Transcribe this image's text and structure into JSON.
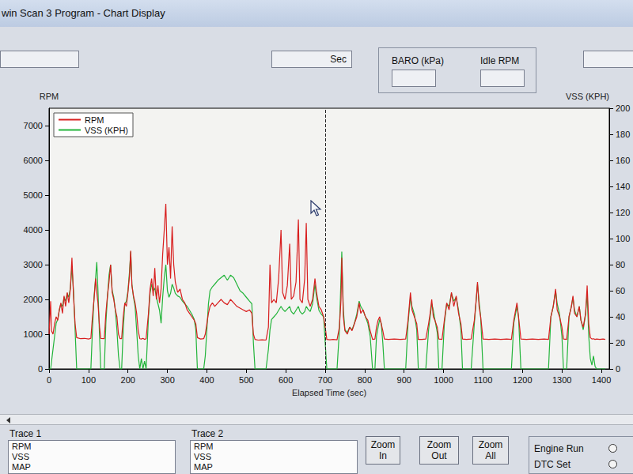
{
  "window": {
    "title": "win Scan 3 Program - Chart Display",
    "fields": {
      "time_unit": "Sec",
      "baro": "BARO (kPa)",
      "idle": "Idle RPM"
    }
  },
  "chart_data": {
    "type": "line",
    "x_label": "Elapsed Time (sec)",
    "y_label": "RPM",
    "y2_label": "VSS (KPH)",
    "legend": "upper left",
    "grid": false,
    "xlim": [
      0,
      1420
    ],
    "xticks": [
      0,
      100,
      200,
      300,
      400,
      500,
      600,
      700,
      800,
      900,
      1000,
      1100,
      1200,
      1300,
      1400
    ],
    "ylim": [
      0,
      7500
    ],
    "yticks": [
      0,
      1000,
      2000,
      3000,
      4000,
      5000,
      6000,
      7000
    ],
    "y2lim": [
      0,
      200
    ],
    "y2ticks": [
      0,
      20,
      40,
      60,
      80,
      100,
      120,
      140,
      160,
      180,
      200
    ],
    "cursor_time": 700,
    "x": [
      0,
      4,
      6,
      10,
      14,
      18,
      22,
      26,
      30,
      34,
      38,
      42,
      46,
      50,
      54,
      58,
      62,
      66,
      70,
      80,
      90,
      100,
      106,
      110,
      114,
      118,
      121,
      124,
      128,
      131,
      140,
      144,
      148,
      152,
      156,
      160,
      164,
      168,
      172,
      176,
      180,
      184,
      188,
      192,
      196,
      200,
      204,
      207,
      210,
      214,
      218,
      222,
      226,
      230,
      234,
      238,
      242,
      246,
      252,
      256,
      260,
      264,
      268,
      272,
      276,
      280,
      284,
      288,
      292,
      296,
      300,
      304,
      308,
      312,
      316,
      320,
      326,
      332,
      338,
      344,
      350,
      356,
      362,
      368,
      372,
      376,
      384,
      392,
      396,
      400,
      404,
      408,
      414,
      420,
      428,
      436,
      444,
      452,
      460,
      468,
      476,
      484,
      492,
      500,
      508,
      514,
      518,
      522,
      530,
      540,
      550,
      556,
      560,
      564,
      570,
      576,
      582,
      588,
      592,
      598,
      604,
      610,
      614,
      620,
      626,
      632,
      636,
      642,
      648,
      652,
      656,
      662,
      668,
      674,
      678,
      684,
      690,
      696,
      700,
      704,
      712,
      720,
      730,
      736,
      740,
      742,
      746,
      750,
      756,
      762,
      768,
      774,
      780,
      786,
      790,
      796,
      802,
      808,
      814,
      820,
      826,
      830,
      834,
      838,
      842,
      846,
      850,
      860,
      875,
      890,
      904,
      910,
      916,
      920,
      926,
      932,
      936,
      945,
      955,
      962,
      966,
      970,
      974,
      978,
      984,
      988,
      996,
      1002,
      1008,
      1014,
      1020,
      1026,
      1032,
      1038,
      1044,
      1048,
      1058,
      1070,
      1078,
      1082,
      1086,
      1090,
      1094,
      1100,
      1115,
      1130,
      1145,
      1160,
      1172,
      1178,
      1186,
      1190,
      1196,
      1210,
      1225,
      1240,
      1255,
      1266,
      1272,
      1278,
      1284,
      1288,
      1294,
      1300,
      1304,
      1312,
      1318,
      1324,
      1328,
      1332,
      1338,
      1344,
      1348,
      1354,
      1360,
      1364,
      1368,
      1372,
      1376,
      1380,
      1384,
      1388,
      1396,
      1404,
      1410
    ],
    "series": [
      {
        "name": "RPM",
        "color": "#d81e1e",
        "values": [
          1000,
          1950,
          1100,
          1000,
          1300,
          1500,
          1400,
          1700,
          1900,
          1600,
          2100,
          1800,
          2200,
          1900,
          2300,
          3200,
          2100,
          1300,
          900,
          870,
          880,
          860,
          880,
          1500,
          2000,
          2600,
          2200,
          1900,
          1200,
          880,
          870,
          1600,
          2100,
          2500,
          3000,
          2200,
          2000,
          1700,
          1500,
          1000,
          870,
          870,
          1500,
          1900,
          1800,
          2200,
          2700,
          3400,
          2400,
          2100,
          1900,
          1600,
          1100,
          870,
          860,
          880,
          850,
          870,
          1600,
          2300,
          2600,
          2100,
          2900,
          2000,
          2400,
          1900,
          2300,
          3300,
          4000,
          4750,
          3000,
          3500,
          2600,
          4100,
          3000,
          2500,
          2200,
          2300,
          2000,
          1900,
          1700,
          1600,
          1500,
          1400,
          1300,
          900,
          860,
          870,
          1000,
          1300,
          1600,
          1800,
          1900,
          1800,
          1900,
          2000,
          1900,
          1850,
          2000,
          1900,
          1800,
          1750,
          1700,
          1650,
          1700,
          1600,
          1000,
          850,
          830,
          840,
          830,
          1200,
          3000,
          1900,
          2000,
          1900,
          2600,
          4000,
          2200,
          2000,
          2400,
          3600,
          2000,
          2100,
          2500,
          4300,
          2000,
          1900,
          2600,
          4200,
          2000,
          1800,
          2000,
          2600,
          2200,
          1800,
          1700,
          1500,
          1200,
          850,
          840,
          850,
          840,
          1200,
          2000,
          3200,
          1500,
          1100,
          1000,
          1200,
          1100,
          1300,
          1500,
          1900,
          1600,
          1700,
          1500,
          1400,
          1100,
          850,
          860,
          1200,
          1400,
          1500,
          1300,
          1100,
          860,
          850,
          860,
          850,
          860,
          1400,
          2200,
          1700,
          1500,
          1300,
          850,
          850,
          860,
          1300,
          1600,
          2000,
          1500,
          1400,
          1200,
          860,
          850,
          1400,
          1900,
          1700,
          2200,
          1800,
          2100,
          1600,
          1300,
          860,
          850,
          860,
          1400,
          1900,
          2500,
          1800,
          1500,
          860,
          850,
          860,
          850,
          860,
          850,
          1400,
          1900,
          1500,
          860,
          850,
          860,
          850,
          860,
          850,
          1500,
          1800,
          2300,
          1700,
          1500,
          1200,
          860,
          850,
          1500,
          1800,
          2100,
          1600,
          1500,
          1800,
          1400,
          1200,
          1600,
          2400,
          1300,
          900,
          860,
          870,
          850,
          860,
          850,
          860,
          850
        ]
      },
      {
        "name": "VSS (KPH)",
        "color": "#22b43a",
        "axis": "y2",
        "values": [
          0,
          0,
          5,
          15,
          25,
          35,
          38,
          45,
          50,
          48,
          55,
          52,
          58,
          55,
          62,
          78,
          60,
          30,
          0,
          0,
          0,
          0,
          0,
          30,
          55,
          70,
          82,
          60,
          25,
          0,
          0,
          35,
          55,
          72,
          80,
          60,
          55,
          45,
          30,
          10,
          0,
          0,
          30,
          50,
          52,
          60,
          75,
          90,
          65,
          55,
          48,
          30,
          10,
          0,
          8,
          0,
          6,
          0,
          40,
          58,
          65,
          60,
          62,
          55,
          50,
          45,
          35,
          55,
          70,
          80,
          60,
          55,
          58,
          65,
          62,
          58,
          56,
          55,
          52,
          50,
          48,
          45,
          42,
          38,
          30,
          0,
          0,
          0,
          10,
          30,
          50,
          60,
          63,
          65,
          68,
          70,
          72,
          68,
          72,
          70,
          65,
          60,
          58,
          55,
          52,
          50,
          20,
          0,
          0,
          0,
          0,
          15,
          30,
          38,
          40,
          42,
          45,
          48,
          46,
          44,
          46,
          48,
          44,
          42,
          45,
          48,
          44,
          42,
          44,
          48,
          46,
          44,
          50,
          65,
          55,
          45,
          42,
          40,
          20,
          0,
          0,
          0,
          0,
          30,
          70,
          90,
          45,
          30,
          28,
          32,
          30,
          35,
          42,
          52,
          48,
          45,
          40,
          35,
          25,
          0,
          0,
          25,
          32,
          38,
          35,
          20,
          0,
          0,
          0,
          0,
          0,
          35,
          55,
          48,
          42,
          30,
          0,
          0,
          0,
          30,
          40,
          50,
          45,
          38,
          28,
          0,
          0,
          35,
          50,
          48,
          58,
          52,
          55,
          45,
          30,
          0,
          0,
          0,
          35,
          50,
          65,
          52,
          40,
          0,
          0,
          0,
          0,
          0,
          0,
          35,
          48,
          40,
          0,
          0,
          0,
          0,
          0,
          0,
          40,
          48,
          60,
          50,
          42,
          25,
          0,
          0,
          40,
          48,
          55,
          45,
          40,
          48,
          38,
          30,
          42,
          58,
          25,
          8,
          3,
          10,
          2,
          0,
          0,
          0,
          0
        ]
      }
    ]
  },
  "controls": {
    "traces": [
      {
        "label": "Trace 1",
        "items": [
          "RPM",
          "VSS",
          "MAP"
        ]
      },
      {
        "label": "Trace 2",
        "items": [
          "RPM",
          "VSS",
          "MAP"
        ]
      }
    ],
    "buttons": [
      "Zoom In",
      "Zoom Out",
      "Zoom All"
    ],
    "indicators": [
      "Engine Run",
      "DTC Set"
    ]
  }
}
